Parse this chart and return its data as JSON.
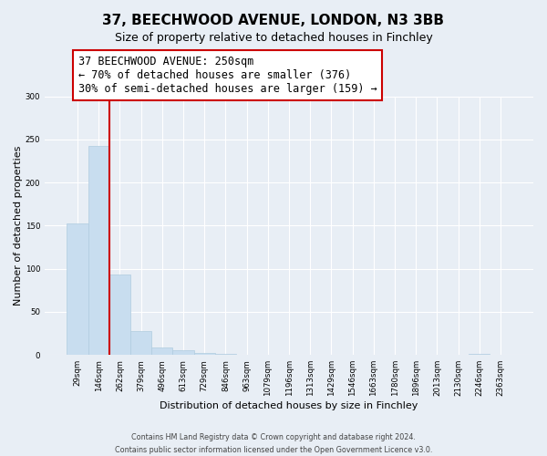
{
  "title": "37, BEECHWOOD AVENUE, LONDON, N3 3BB",
  "subtitle": "Size of property relative to detached houses in Finchley",
  "xlabel": "Distribution of detached houses by size in Finchley",
  "ylabel": "Number of detached properties",
  "bin_labels": [
    "29sqm",
    "146sqm",
    "262sqm",
    "379sqm",
    "496sqm",
    "613sqm",
    "729sqm",
    "846sqm",
    "963sqm",
    "1079sqm",
    "1196sqm",
    "1313sqm",
    "1429sqm",
    "1546sqm",
    "1663sqm",
    "1780sqm",
    "1896sqm",
    "2013sqm",
    "2130sqm",
    "2246sqm",
    "2363sqm"
  ],
  "bar_values": [
    153,
    242,
    93,
    28,
    9,
    5,
    2,
    1,
    0,
    0,
    0,
    0,
    0,
    0,
    0,
    0,
    0,
    0,
    0,
    1,
    0
  ],
  "bar_color": "#c8ddef",
  "bar_edge_color": "#b0ccdf",
  "vline_color": "#cc0000",
  "annotation_text": "37 BEECHWOOD AVENUE: 250sqm\n← 70% of detached houses are smaller (376)\n30% of semi-detached houses are larger (159) →",
  "annotation_box_color": "#ffffff",
  "annotation_box_edge": "#cc0000",
  "ylim": [
    0,
    300
  ],
  "yticks": [
    0,
    50,
    100,
    150,
    200,
    250,
    300
  ],
  "footer_line1": "Contains HM Land Registry data © Crown copyright and database right 2024.",
  "footer_line2": "Contains public sector information licensed under the Open Government Licence v3.0.",
  "background_color": "#e8eef5",
  "plot_bg_color": "#e8eef5",
  "grid_color": "#ffffff",
  "title_fontsize": 11,
  "subtitle_fontsize": 9
}
